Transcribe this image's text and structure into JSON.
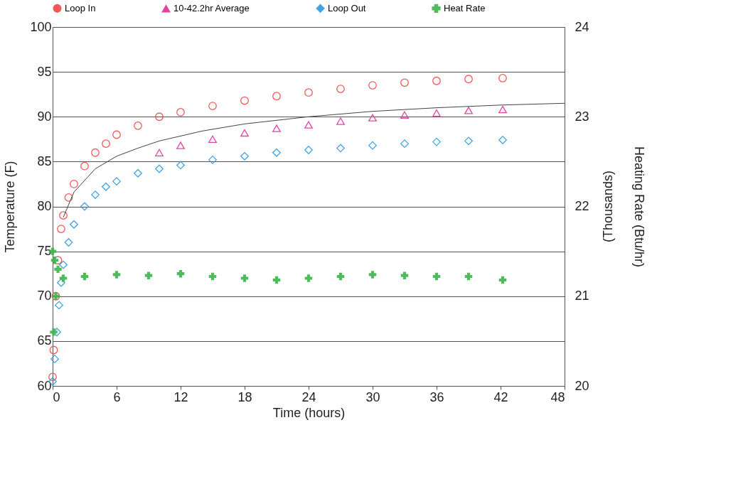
{
  "chart_data": {
    "type": "scatter",
    "xlabel": "Time (hours)",
    "ylabel": "Temperature (F)",
    "y2label": "Heating Rate (Btu/hr)",
    "annotations": [
      "(Thousands)"
    ],
    "xlim": [
      0,
      48
    ],
    "xticks": [
      0,
      6,
      12,
      18,
      24,
      30,
      36,
      42,
      48
    ],
    "ylim": [
      60,
      100
    ],
    "yticks": [
      60,
      65,
      70,
      75,
      80,
      85,
      90,
      95,
      100
    ],
    "y2lim": [
      20,
      24
    ],
    "y2ticks": [
      20,
      21,
      22,
      23,
      24
    ],
    "grid": "y",
    "legend": "top",
    "series": [
      {
        "name": "Loop In",
        "marker": "circle",
        "color": "#f04848",
        "x": [
          0,
          0.1,
          0.3,
          0.5,
          0.8,
          1,
          1.5,
          2,
          3,
          4,
          5,
          6,
          8,
          10,
          12,
          15,
          18,
          21,
          24,
          27,
          30,
          33,
          36,
          39,
          42.2
        ],
        "values": [
          61,
          64,
          70,
          74,
          77.5,
          79,
          81,
          82.5,
          84.5,
          86,
          87,
          88,
          89,
          90,
          90.5,
          91.2,
          91.8,
          92.3,
          92.7,
          93.1,
          93.5,
          93.8,
          94,
          94.2,
          94.3
        ]
      },
      {
        "name": "10-42.2hr Average",
        "marker": "triangle",
        "color": "#e0309a",
        "x": [
          10,
          12,
          15,
          18,
          21,
          24,
          27,
          30,
          33,
          36,
          39,
          42.2
        ],
        "values": [
          86,
          86.8,
          87.5,
          88.2,
          88.7,
          89.1,
          89.5,
          89.9,
          90.2,
          90.4,
          90.7,
          90.8
        ]
      },
      {
        "name": "Loop Out",
        "marker": "diamond",
        "color": "#2f9be0",
        "x": [
          0,
          0.2,
          0.4,
          0.6,
          0.8,
          1,
          1.5,
          2,
          3,
          4,
          5,
          6,
          8,
          10,
          12,
          15,
          18,
          21,
          24,
          27,
          30,
          33,
          36,
          39,
          42.2
        ],
        "values": [
          60.5,
          63,
          66,
          69,
          71.5,
          73.5,
          76,
          78,
          80,
          81.3,
          82.2,
          82.8,
          83.7,
          84.2,
          84.6,
          85.2,
          85.6,
          86,
          86.3,
          86.5,
          86.8,
          87,
          87.2,
          87.3,
          87.4
        ]
      },
      {
        "name": "Heat Rate",
        "marker": "cross",
        "axis": "y2",
        "color": "#3cb44b",
        "x": [
          0,
          0.1,
          0.2,
          0.3,
          0.5,
          1,
          3,
          6,
          9,
          12,
          15,
          18,
          21,
          24,
          27,
          30,
          33,
          36,
          39,
          42.2
        ],
        "values": [
          21.5,
          20.6,
          21.4,
          21.0,
          21.3,
          21.2,
          21.22,
          21.24,
          21.23,
          21.25,
          21.22,
          21.2,
          21.18,
          21.2,
          21.22,
          21.24,
          21.23,
          21.22,
          21.22,
          21.18
        ]
      },
      {
        "type": "line",
        "line_style": "solid",
        "color": "#444444",
        "x": [
          1,
          2,
          4,
          6,
          8,
          10,
          14,
          18,
          24,
          30,
          36,
          42,
          48
        ],
        "values": [
          78.8,
          81.6,
          84.2,
          85.6,
          86.5,
          87.3,
          88.4,
          89.2,
          90,
          90.6,
          91,
          91.3,
          91.5
        ]
      }
    ]
  }
}
